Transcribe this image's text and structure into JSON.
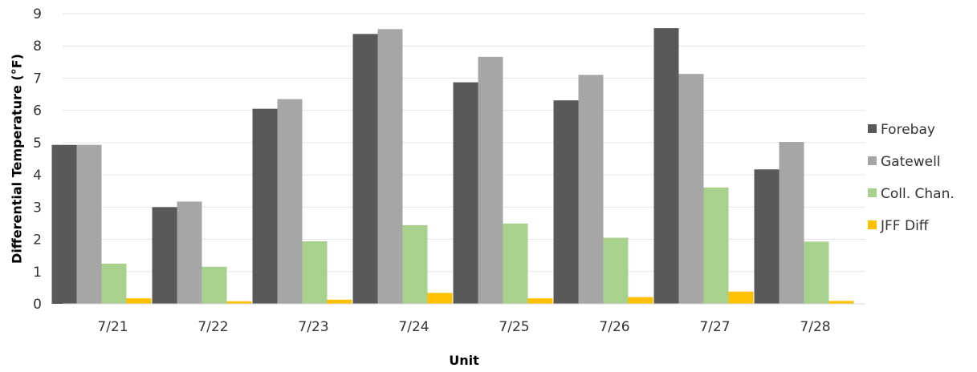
{
  "chart_data": {
    "type": "bar",
    "title": "",
    "xlabel": "Unit",
    "ylabel": "Differential Temperature (°F)",
    "ylim": [
      0,
      9
    ],
    "yticks": [
      0,
      1,
      2,
      3,
      4,
      5,
      6,
      7,
      8,
      9
    ],
    "grid": true,
    "legend_position": "right",
    "categories": [
      "7/21",
      "7/22",
      "7/23",
      "7/24",
      "7/25",
      "7/26",
      "7/27",
      "7/28"
    ],
    "series": [
      {
        "name": "Forebay",
        "color": "#595959",
        "values": [
          4.93,
          3.0,
          6.05,
          8.37,
          6.87,
          6.31,
          8.55,
          4.17
        ]
      },
      {
        "name": "Gatewell",
        "color": "#a6a6a6",
        "values": [
          4.93,
          3.17,
          6.35,
          8.52,
          7.66,
          7.1,
          7.13,
          5.02
        ]
      },
      {
        "name": "Coll. Chan.",
        "color": "#a9d18e",
        "values": [
          1.25,
          1.15,
          1.94,
          2.44,
          2.49,
          2.05,
          3.61,
          1.93
        ]
      },
      {
        "name": "JFF Diff",
        "color": "#ffc000",
        "values": [
          0.17,
          0.08,
          0.13,
          0.34,
          0.17,
          0.21,
          0.38,
          0.09
        ]
      }
    ]
  }
}
